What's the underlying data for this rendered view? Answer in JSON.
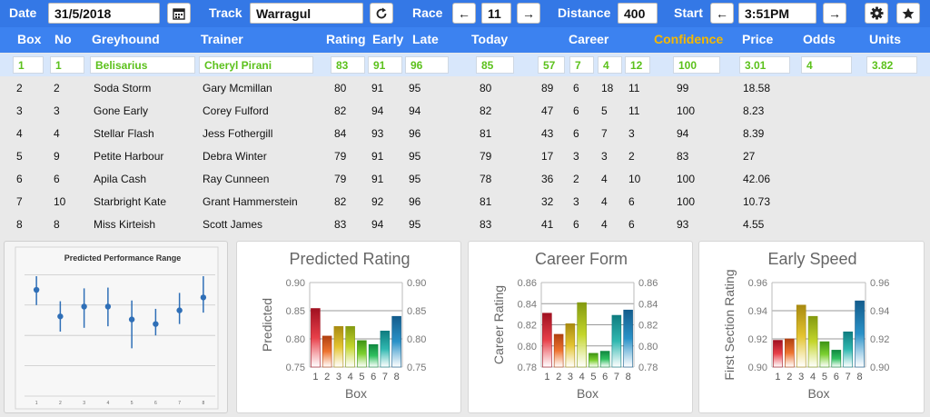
{
  "toolbar": {
    "date_label": "Date",
    "date_value": "31/5/2018",
    "track_label": "Track",
    "track_value": "Warragul",
    "race_label": "Race",
    "race_value": "11",
    "distance_label": "Distance",
    "distance_value": "400",
    "start_label": "Start",
    "start_value": "3:51PM",
    "prev_arrow": "←",
    "next_arrow": "→"
  },
  "columns": {
    "box": "Box",
    "no": "No",
    "greyhound": "Greyhound",
    "trainer": "Trainer",
    "rating": "Rating",
    "early": "Early",
    "late": "Late",
    "today": "Today",
    "career": "Career",
    "confidence": "Confidence",
    "price": "Price",
    "odds": "Odds",
    "units": "Units"
  },
  "colors": {
    "toolbar_bg": "#3478e6",
    "header_bg": "#3c82f0",
    "selected_text": "#5cc11c",
    "confidence_header": "#f5b800",
    "selected_row_bg": "#d8e7fb"
  },
  "rows": [
    {
      "box": "1",
      "no": "1",
      "greyhound": "Belisarius",
      "trainer": "Cheryl Pirani",
      "rating": "83",
      "early": "91",
      "late": "96",
      "today": "85",
      "c1": "57",
      "c2": "7",
      "c3": "4",
      "c4": "12",
      "confidence": "100",
      "price": "3.01",
      "odds": "4",
      "units": "3.82"
    },
    {
      "box": "2",
      "no": "2",
      "greyhound": "Soda Storm",
      "trainer": "Gary Mcmillan",
      "rating": "80",
      "early": "91",
      "late": "95",
      "today": "80",
      "c1": "89",
      "c2": "6",
      "c3": "18",
      "c4": "11",
      "confidence": "99",
      "price": "18.58",
      "odds": "",
      "units": ""
    },
    {
      "box": "3",
      "no": "3",
      "greyhound": "Gone Early",
      "trainer": "Corey Fulford",
      "rating": "82",
      "early": "94",
      "late": "94",
      "today": "82",
      "c1": "47",
      "c2": "6",
      "c3": "5",
      "c4": "11",
      "confidence": "100",
      "price": "8.23",
      "odds": "",
      "units": ""
    },
    {
      "box": "4",
      "no": "4",
      "greyhound": "Stellar Flash",
      "trainer": "Jess Fothergill",
      "rating": "84",
      "early": "93",
      "late": "96",
      "today": "81",
      "c1": "43",
      "c2": "6",
      "c3": "7",
      "c4": "3",
      "confidence": "94",
      "price": "8.39",
      "odds": "",
      "units": ""
    },
    {
      "box": "5",
      "no": "9",
      "greyhound": "Petite Harbour",
      "trainer": "Debra Winter",
      "rating": "79",
      "early": "91",
      "late": "95",
      "today": "79",
      "c1": "17",
      "c2": "3",
      "c3": "3",
      "c4": "2",
      "confidence": "83",
      "price": "27",
      "odds": "",
      "units": ""
    },
    {
      "box": "6",
      "no": "6",
      "greyhound": "Apila Cash",
      "trainer": "Ray Cunneen",
      "rating": "79",
      "early": "91",
      "late": "95",
      "today": "78",
      "c1": "36",
      "c2": "2",
      "c3": "4",
      "c4": "10",
      "confidence": "100",
      "price": "42.06",
      "odds": "",
      "units": ""
    },
    {
      "box": "7",
      "no": "10",
      "greyhound": "Starbright Kate",
      "trainer": "Grant Hammerstein",
      "rating": "82",
      "early": "92",
      "late": "96",
      "today": "81",
      "c1": "32",
      "c2": "3",
      "c3": "4",
      "c4": "6",
      "confidence": "100",
      "price": "10.73",
      "odds": "",
      "units": ""
    },
    {
      "box": "8",
      "no": "8",
      "greyhound": "Miss Kirteish",
      "trainer": "Scott James",
      "rating": "83",
      "early": "94",
      "late": "95",
      "today": "83",
      "c1": "41",
      "c2": "6",
      "c3": "4",
      "c4": "6",
      "confidence": "93",
      "price": "4.55",
      "odds": "",
      "units": ""
    }
  ],
  "chart_data": [
    {
      "type": "scatter",
      "title": "Predicted Performance Range",
      "x": [
        1,
        2,
        3,
        4,
        5,
        6,
        7,
        8
      ],
      "y": [
        0.84,
        0.805,
        0.818,
        0.818,
        0.801,
        0.795,
        0.813,
        0.83
      ],
      "y_low": [
        0.82,
        0.785,
        0.79,
        0.792,
        0.763,
        0.78,
        0.795,
        0.81
      ],
      "y_high": [
        0.858,
        0.825,
        0.842,
        0.843,
        0.826,
        0.815,
        0.836,
        0.858
      ],
      "ylim": [
        0.7,
        0.87
      ],
      "grid": true,
      "xlabel": "",
      "ylabel": ""
    },
    {
      "type": "bar",
      "title": "Predicted Rating",
      "categories": [
        "1",
        "2",
        "3",
        "4",
        "5",
        "6",
        "7",
        "8"
      ],
      "values": [
        0.854,
        0.805,
        0.822,
        0.822,
        0.797,
        0.79,
        0.814,
        0.84
      ],
      "xlabel": "Box",
      "ylabel": "Predicted",
      "ylim": [
        0.75,
        0.9
      ],
      "ticks": [
        "0.75",
        "0.80",
        "0.85",
        "0.90"
      ],
      "tick_values": [
        0.75,
        0.8,
        0.85,
        0.9
      ]
    },
    {
      "type": "bar",
      "title": "Career Form",
      "categories": [
        "1",
        "2",
        "3",
        "4",
        "5",
        "6",
        "7",
        "8"
      ],
      "values": [
        0.831,
        0.811,
        0.821,
        0.841,
        0.793,
        0.795,
        0.829,
        0.834
      ],
      "xlabel": "Box",
      "ylabel": "Career Rating",
      "ylim": [
        0.78,
        0.86
      ],
      "ticks": [
        "0.78",
        "0.80",
        "0.82",
        "0.84",
        "0.86"
      ],
      "tick_values": [
        0.78,
        0.8,
        0.82,
        0.84,
        0.86
      ]
    },
    {
      "type": "bar",
      "title": "Early Speed",
      "categories": [
        "1",
        "2",
        "3",
        "4",
        "5",
        "6",
        "7",
        "8"
      ],
      "values": [
        0.919,
        0.92,
        0.944,
        0.936,
        0.918,
        0.912,
        0.925,
        0.947
      ],
      "xlabel": "Box",
      "ylabel": "First Section Rating",
      "ylim": [
        0.9,
        0.96
      ],
      "ticks": [
        "0.90",
        "0.92",
        "0.94",
        "0.96"
      ],
      "tick_values": [
        0.9,
        0.92,
        0.94,
        0.96
      ]
    }
  ]
}
